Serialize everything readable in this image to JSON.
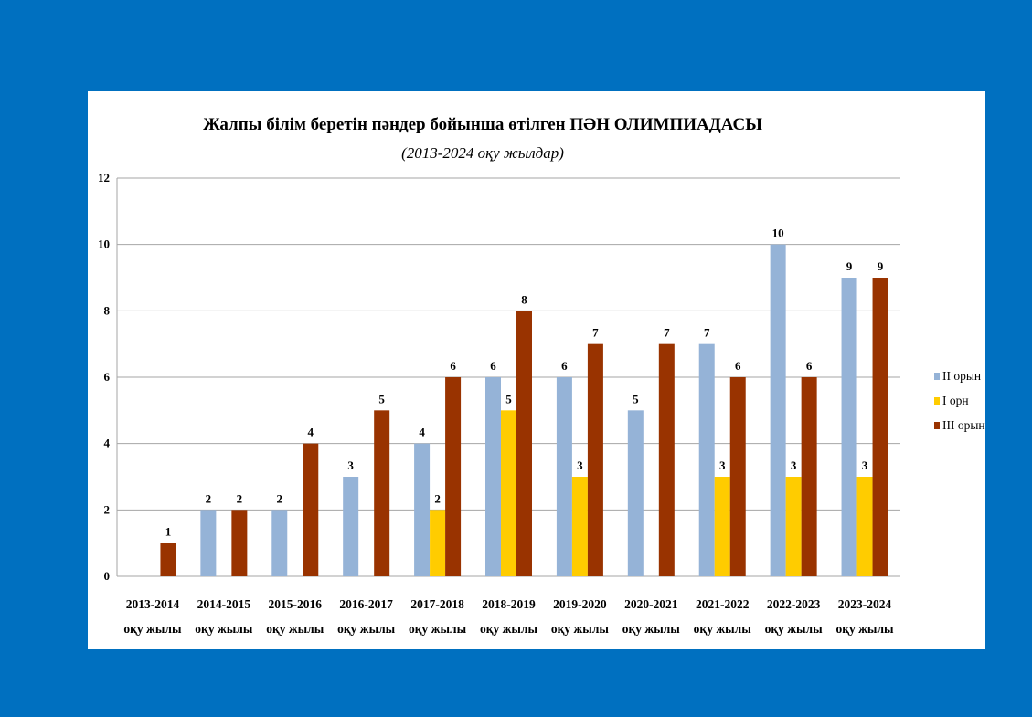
{
  "chart_data": {
    "type": "bar",
    "title": "Жалпы білім беретін пәндер бойынша өтілген ПӘН ОЛИМПИАДАСЫ",
    "subtitle": "(2013-2024 оқу жылдар)",
    "categories": [
      "2013-2014",
      "2014-2015",
      "2015-2016",
      "2016-2017",
      "2017-2018",
      "2018-2019",
      "2019-2020",
      "2020-2021",
      "2021-2022",
      "2022-2023",
      "2023-2024"
    ],
    "category_sublabel": "оқу жылы",
    "series": [
      {
        "name": "II орын",
        "color": "#95b3d7",
        "values": [
          null,
          2,
          2,
          3,
          4,
          6,
          6,
          5,
          7,
          10,
          9
        ]
      },
      {
        "name": "I орн",
        "color": "#ffcc00",
        "values": [
          null,
          null,
          null,
          null,
          2,
          5,
          3,
          null,
          3,
          3,
          3
        ]
      },
      {
        "name": "III орын",
        "color": "#993300",
        "values": [
          1,
          2,
          4,
          5,
          6,
          8,
          7,
          7,
          6,
          6,
          9
        ]
      }
    ],
    "ylim": [
      0,
      12
    ],
    "yticks": [
      0,
      2,
      4,
      6,
      8,
      10,
      12
    ],
    "grid": true,
    "legend": "right",
    "xlabel": "",
    "ylabel": ""
  }
}
